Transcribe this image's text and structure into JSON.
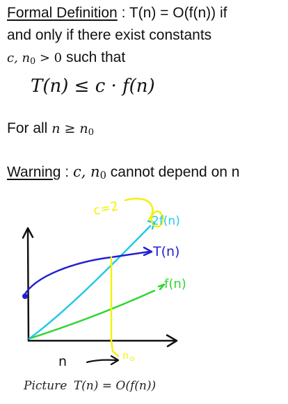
{
  "definition": {
    "heading": "Formal Definition",
    "statement": " : T(n) = O(f(n)) if",
    "line2": "and only if there exist constants",
    "constants": "c, n",
    "constants_sub": "0",
    "constants_tail": " > 0",
    "such_that": "  such that",
    "inequality": "T(n) ≤ c · f(n)",
    "for_all": "For all ",
    "for_all_math": "n ≥ n",
    "for_all_sub": "0"
  },
  "warning": {
    "heading": "Warning",
    "colon": " : ",
    "vars": "c, n",
    "vars_sub": "0",
    "text": " cannot depend on n"
  },
  "sketch": {
    "c_label": "c=2",
    "label_2f": "2f(n)",
    "label_t": "T(n)",
    "label_f": "f(n)",
    "label_n": "n",
    "label_n0": "n",
    "label_n0_sub": "o",
    "colors": {
      "blue": "#2420d0",
      "cyan": "#22c8e8",
      "green": "#2ed62e",
      "yellow": "#f2f20a",
      "black": "#111111"
    }
  },
  "caption": {
    "word": "Picture",
    "formula": "T(n) = O(f(n))"
  }
}
